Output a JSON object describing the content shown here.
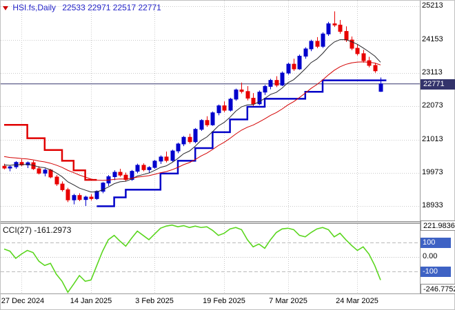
{
  "header": {
    "symbol_title": "HSI.fs,Daily",
    "ohlc_text": "22533 22971 22517 22771"
  },
  "colors": {
    "title": "#2222C8",
    "bull": "#0000CC",
    "bear": "#E80000",
    "ma_fast": "#26262A",
    "ma_slow": "#D40000",
    "trail_up": "#0202C8",
    "trail_down": "#E00000",
    "price_line": "#33336B",
    "cci_line": "#5AD61E",
    "level_label_bg": "#3E62C4",
    "grid": "#C9C9C9",
    "panel_border": "#9A9A9A"
  },
  "chart_data": {
    "type": "candlestick",
    "symbol": "HSI.fs",
    "timeframe": "Daily",
    "last_bar": {
      "open": 22533,
      "high": 22971,
      "low": 22517,
      "close": 22771
    },
    "price_axis": {
      "ticks": [
        25213,
        24153,
        23113,
        22073,
        21013,
        19973,
        18933
      ],
      "ylim": [
        18452,
        25408
      ]
    },
    "time_ticks": [
      {
        "index": 3,
        "label": "27 Dec 2024"
      },
      {
        "index": 15,
        "label": "14 Jan 2025"
      },
      {
        "index": 26,
        "label": "3 Feb 2025"
      },
      {
        "index": 38,
        "label": "19 Feb 2025"
      },
      {
        "index": 49,
        "label": "7 Mar 2025"
      },
      {
        "index": 61,
        "label": "24 Mar 2025"
      }
    ],
    "candles": [
      [
        20180,
        20260,
        20080,
        20120
      ],
      [
        20120,
        20210,
        20020,
        20160
      ],
      [
        20160,
        20340,
        20100,
        20300
      ],
      [
        20300,
        20400,
        20180,
        20220
      ],
      [
        20220,
        20330,
        20120,
        20290
      ],
      [
        20290,
        20360,
        20060,
        20100
      ],
      [
        20100,
        20180,
        19920,
        19960
      ],
      [
        19960,
        20110,
        19860,
        20060
      ],
      [
        20060,
        20090,
        19800,
        19840
      ],
      [
        19840,
        19900,
        19560,
        19620
      ],
      [
        19620,
        19700,
        19380,
        19440
      ],
      [
        19440,
        19500,
        19050,
        19120
      ],
      [
        19120,
        19310,
        18980,
        19260
      ],
      [
        19260,
        19330,
        19080,
        19130
      ],
      [
        19130,
        19250,
        18930,
        19210
      ],
      [
        19210,
        19300,
        19100,
        19160
      ],
      [
        19160,
        19420,
        19120,
        19390
      ],
      [
        19390,
        19680,
        19330,
        19650
      ],
      [
        19650,
        19900,
        19560,
        19850
      ],
      [
        19850,
        20050,
        19740,
        19990
      ],
      [
        19990,
        20100,
        19850,
        19900
      ],
      [
        19900,
        19980,
        19700,
        19760
      ],
      [
        19760,
        20060,
        19720,
        20020
      ],
      [
        20020,
        20260,
        19960,
        20210
      ],
      [
        20210,
        20270,
        20020,
        20070
      ],
      [
        20070,
        20180,
        19970,
        20140
      ],
      [
        20140,
        20380,
        20100,
        20340
      ],
      [
        20340,
        20520,
        20250,
        20470
      ],
      [
        20470,
        20640,
        20300,
        20360
      ],
      [
        20360,
        20700,
        20320,
        20660
      ],
      [
        20660,
        20920,
        20590,
        20880
      ],
      [
        20880,
        21130,
        20810,
        21090
      ],
      [
        21090,
        21200,
        20890,
        20950
      ],
      [
        20950,
        21380,
        20900,
        21340
      ],
      [
        21340,
        21660,
        21290,
        21620
      ],
      [
        21620,
        21750,
        21420,
        21480
      ],
      [
        21480,
        21900,
        21450,
        21860
      ],
      [
        21860,
        22120,
        21780,
        22080
      ],
      [
        22080,
        22220,
        21880,
        21940
      ],
      [
        21940,
        22330,
        21900,
        22290
      ],
      [
        22290,
        22620,
        22240,
        22580
      ],
      [
        22580,
        22810,
        22470,
        22530
      ],
      [
        22530,
        22700,
        22250,
        22320
      ],
      [
        22320,
        22480,
        22070,
        22140
      ],
      [
        22140,
        22560,
        22100,
        22510
      ],
      [
        22510,
        22740,
        22420,
        22690
      ],
      [
        22690,
        22930,
        22600,
        22880
      ],
      [
        22880,
        23010,
        22670,
        22730
      ],
      [
        22730,
        23160,
        22700,
        23110
      ],
      [
        23110,
        23440,
        23060,
        23390
      ],
      [
        23390,
        23560,
        23180,
        23240
      ],
      [
        23240,
        23690,
        23210,
        23640
      ],
      [
        23640,
        23920,
        23560,
        23870
      ],
      [
        23870,
        24160,
        23800,
        24110
      ],
      [
        24110,
        24240,
        23890,
        23950
      ],
      [
        23950,
        24390,
        23900,
        24340
      ],
      [
        24340,
        24720,
        24280,
        24660
      ],
      [
        24660,
        25050,
        24560,
        24620
      ],
      [
        24620,
        24780,
        24350,
        24420
      ],
      [
        24420,
        24580,
        24090,
        24150
      ],
      [
        24150,
        24260,
        23830,
        23890
      ],
      [
        23890,
        24020,
        23660,
        23720
      ],
      [
        23720,
        23840,
        23440,
        23500
      ],
      [
        23500,
        23620,
        23290,
        23350
      ],
      [
        23350,
        23430,
        23120,
        23180
      ],
      [
        22533,
        22971,
        22517,
        22771
      ]
    ],
    "overlays": {
      "ma_fast": {
        "type": "ema",
        "period": 8,
        "seed": 20250,
        "width": 1
      },
      "ma_slow": {
        "type": "ema",
        "period": 21,
        "seed": 20520,
        "width": 1
      },
      "trail_segments": [
        {
          "dir": "down",
          "width": 2.5,
          "end": 16,
          "steps": [
            [
              0,
              21480
            ],
            [
              4,
              21060
            ],
            [
              7,
              20690
            ],
            [
              10,
              20350
            ],
            [
              12,
              20050
            ],
            [
              14,
              19750
            ]
          ]
        },
        {
          "dir": "up",
          "width": 2.5,
          "end": 66,
          "steps": [
            [
              16,
              18920
            ],
            [
              19,
              19200
            ],
            [
              21,
              19440
            ],
            [
              27,
              19950
            ],
            [
              30,
              20350
            ],
            [
              33,
              20750
            ],
            [
              36,
              21250
            ],
            [
              39,
              21650
            ],
            [
              42,
              22050
            ],
            [
              45,
              22300
            ],
            [
              52,
              22520
            ],
            [
              55,
              22880
            ]
          ]
        }
      ],
      "price_line": {
        "value": 22771,
        "label": "22771"
      }
    },
    "cci": {
      "title_label": "CCI(27) -161.2973",
      "period": 27,
      "current_value": -161.2973,
      "ylim": [
        -255,
        235
      ],
      "levels": [
        100,
        0,
        -100
      ],
      "level_labels": [
        "100",
        "0.00",
        "-100"
      ],
      "max_label": "221.9836",
      "min_label": "-246.7752",
      "series": [
        55,
        40,
        -10,
        20,
        45,
        30,
        -30,
        -60,
        -45,
        -120,
        -170,
        -246.7752,
        -190,
        -130,
        -170,
        -161,
        -60,
        40,
        120,
        150,
        110,
        75,
        130,
        180,
        150,
        120,
        160,
        200,
        215,
        221.9836,
        210,
        218,
        205,
        215,
        205,
        210,
        185,
        150,
        165,
        195,
        205,
        190,
        120,
        70,
        90,
        60,
        120,
        170,
        195,
        200,
        190,
        150,
        140,
        170,
        195,
        205,
        190,
        140,
        165,
        120,
        80,
        45,
        70,
        20,
        -60,
        -161.2973
      ]
    }
  }
}
